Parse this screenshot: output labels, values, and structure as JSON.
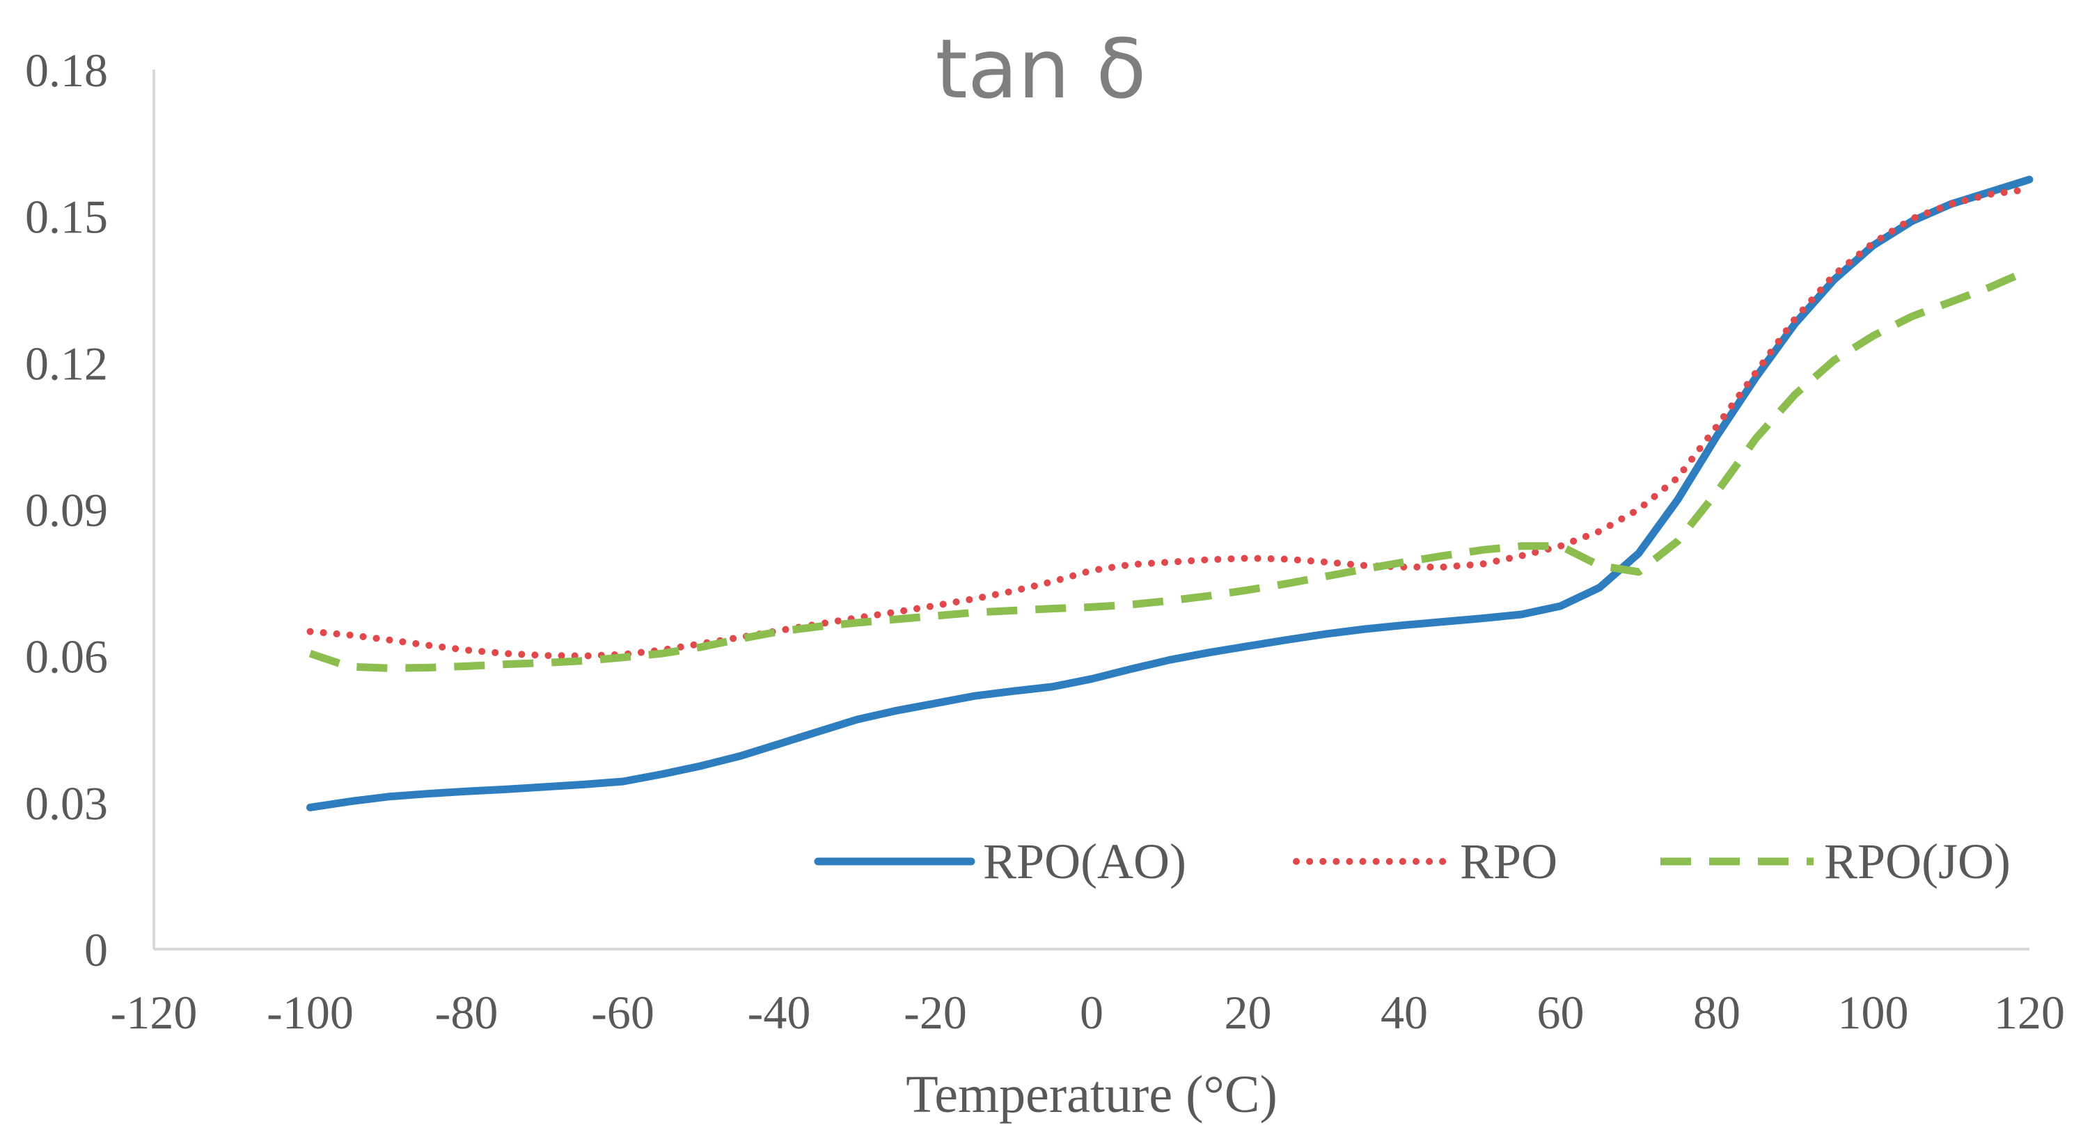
{
  "chart_data": {
    "type": "line",
    "title": "tan δ",
    "xlabel": "Temperature (°C)",
    "ylabel": "",
    "xlim": [
      -120,
      120
    ],
    "ylim": [
      0,
      0.18
    ],
    "x_ticks": [
      -120,
      -100,
      -80,
      -60,
      -40,
      -20,
      0,
      20,
      40,
      60,
      80,
      100,
      120
    ],
    "x_tick_labels": [
      "-120",
      "-100",
      "-80",
      "-60",
      "-40",
      "-20",
      "0",
      "20",
      "40",
      "60",
      "80",
      "100",
      "120"
    ],
    "y_ticks": [
      0,
      0.03,
      0.06,
      0.09,
      0.12,
      0.15,
      0.18
    ],
    "y_tick_labels": [
      "0",
      "0.03",
      "0.06",
      "0.09",
      "0.12",
      "0.15",
      "0.18"
    ],
    "grid": false,
    "legend_position": "bottom-right inside",
    "series": [
      {
        "name": "RPO(AO)",
        "color": "#2e7ebf",
        "style": "solid",
        "x": [
          -100,
          -95,
          -90,
          -85,
          -80,
          -75,
          -70,
          -65,
          -60,
          -55,
          -50,
          -45,
          -40,
          -35,
          -30,
          -25,
          -20,
          -15,
          -10,
          -5,
          0,
          5,
          10,
          15,
          20,
          25,
          30,
          35,
          40,
          45,
          50,
          55,
          60,
          65,
          70,
          75,
          80,
          85,
          90,
          95,
          100,
          105,
          110,
          115,
          120
        ],
        "y": [
          0.029,
          0.0302,
          0.0312,
          0.0318,
          0.0323,
          0.0327,
          0.0332,
          0.0337,
          0.0343,
          0.0358,
          0.0375,
          0.0395,
          0.042,
          0.0445,
          0.047,
          0.0488,
          0.0503,
          0.0518,
          0.0528,
          0.0537,
          0.0553,
          0.0573,
          0.0592,
          0.0607,
          0.062,
          0.0633,
          0.0645,
          0.0655,
          0.0663,
          0.067,
          0.0677,
          0.0685,
          0.0702,
          0.074,
          0.081,
          0.092,
          0.105,
          0.117,
          0.128,
          0.137,
          0.144,
          0.149,
          0.1525,
          0.155,
          0.1575
        ]
      },
      {
        "name": "RPO",
        "color": "#e0494c",
        "style": "dotted",
        "x": [
          -100,
          -95,
          -90,
          -85,
          -80,
          -75,
          -70,
          -65,
          -60,
          -55,
          -50,
          -45,
          -40,
          -35,
          -30,
          -25,
          -20,
          -15,
          -10,
          -5,
          0,
          5,
          10,
          15,
          20,
          25,
          30,
          35,
          40,
          45,
          50,
          55,
          60,
          65,
          70,
          75,
          80,
          85,
          90,
          95,
          100,
          105,
          110,
          115,
          120
        ],
        "y": [
          0.065,
          0.0643,
          0.0633,
          0.0622,
          0.0612,
          0.0605,
          0.0601,
          0.06,
          0.0603,
          0.0612,
          0.0625,
          0.0638,
          0.0652,
          0.0665,
          0.0678,
          0.069,
          0.0703,
          0.0717,
          0.0733,
          0.0752,
          0.0775,
          0.0787,
          0.0792,
          0.0797,
          0.08,
          0.0798,
          0.0792,
          0.0785,
          0.0782,
          0.0782,
          0.0788,
          0.0805,
          0.0825,
          0.0855,
          0.09,
          0.0965,
          0.107,
          0.118,
          0.129,
          0.138,
          0.1445,
          0.1495,
          0.1525,
          0.1545,
          0.1555
        ]
      },
      {
        "name": "RPO(JO)",
        "color": "#8bbd4f",
        "style": "dashed",
        "x": [
          -100,
          -95,
          -90,
          -85,
          -80,
          -75,
          -70,
          -65,
          -60,
          -55,
          -50,
          -45,
          -40,
          -35,
          -30,
          -25,
          -20,
          -15,
          -10,
          -5,
          0,
          5,
          10,
          15,
          20,
          25,
          30,
          35,
          40,
          45,
          50,
          55,
          60,
          65,
          70,
          75,
          80,
          85,
          90,
          95,
          100,
          105,
          110,
          115,
          120
        ],
        "y": [
          0.0605,
          0.0578,
          0.0575,
          0.0576,
          0.0579,
          0.0583,
          0.0586,
          0.059,
          0.0597,
          0.0605,
          0.0618,
          0.0635,
          0.065,
          0.066,
          0.0668,
          0.0675,
          0.0682,
          0.0689,
          0.0693,
          0.0697,
          0.07,
          0.0705,
          0.0713,
          0.0723,
          0.0735,
          0.0748,
          0.0763,
          0.0778,
          0.0792,
          0.0805,
          0.0817,
          0.0825,
          0.0825,
          0.0785,
          0.0772,
          0.0835,
          0.0935,
          0.1045,
          0.1135,
          0.1205,
          0.1255,
          0.1295,
          0.1325,
          0.1355,
          0.139
        ]
      }
    ]
  }
}
